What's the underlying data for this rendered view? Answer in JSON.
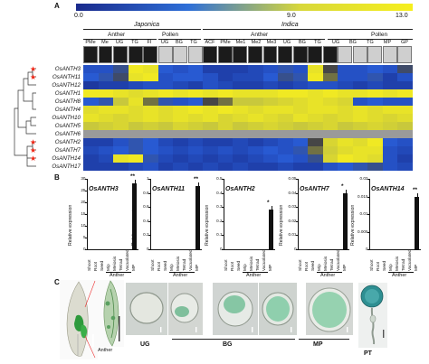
{
  "panel_a": {
    "letter": "A",
    "scale": {
      "min": "0.0",
      "mid": "9.0",
      "max": "13.0",
      "colors": [
        "#1a2a8c",
        "#2e6fd8",
        "#d8d83a",
        "#f6ef1e"
      ]
    },
    "japonica": {
      "label": "Japonica",
      "anther_label": "Anther",
      "pollen_label": "Pollen",
      "anther_cols": [
        "PMe",
        "Me",
        "UG",
        "TG",
        "FI"
      ],
      "pollen_cols": [
        "UG",
        "BG",
        "TG"
      ]
    },
    "indica": {
      "label": "Indica",
      "anther_label": "Anther",
      "pollen_label": "Pollen",
      "anther_cols": [
        "ACF",
        "PMe",
        "Me1",
        "Me2",
        "Me3",
        "UG",
        "BG",
        "TG"
      ],
      "pollen_cols": [
        "UG",
        "BG",
        "TG",
        "MP",
        "GP"
      ]
    },
    "genes": [
      {
        "name": "OsANTH3",
        "star": true
      },
      {
        "name": "OsANTH11",
        "star": true
      },
      {
        "name": "OsANTH12",
        "star": false
      },
      {
        "name": "OsANTH1",
        "star": false
      },
      {
        "name": "OsANTH8",
        "star": false
      },
      {
        "name": "OsANTH4",
        "star": false
      },
      {
        "name": "OsANTH10",
        "star": false
      },
      {
        "name": "OsANTH5",
        "star": false
      },
      {
        "name": "OsANTH6",
        "star": false
      },
      {
        "name": "OsANTH2",
        "star": true
      },
      {
        "name": "OsANTH7",
        "star": true
      },
      {
        "name": "OsANTH14",
        "star": true
      },
      {
        "name": "OsANTH17",
        "star": false
      }
    ],
    "heatmap_levels": [
      [
        0.3,
        0.3,
        0.45,
        0.95,
        0.9,
        0.35,
        0.3,
        0.35,
        0.2,
        0.2,
        0.2,
        0.25,
        0.3,
        0.4,
        0.3,
        0.9,
        0.55,
        0.3,
        0.3,
        0.35,
        0.3,
        0.5
      ],
      [
        0.35,
        0.4,
        0.5,
        0.9,
        0.95,
        0.3,
        0.35,
        0.35,
        0.3,
        0.2,
        0.25,
        0.25,
        0.35,
        0.45,
        0.4,
        0.95,
        0.6,
        0.3,
        0.3,
        0.4,
        0.2,
        0.3
      ],
      [
        0.15,
        0.2,
        0.2,
        0.25,
        0.3,
        0.3,
        0.25,
        0.2,
        0.3,
        0.25,
        0.2,
        0.2,
        0.25,
        0.2,
        0.25,
        0.3,
        0.3,
        0.25,
        0.2,
        0.25,
        0.2,
        0.2
      ],
      [
        0.95,
        0.95,
        0.9,
        0.85,
        0.9,
        0.95,
        0.9,
        0.95,
        0.9,
        0.95,
        0.9,
        0.9,
        0.9,
        0.95,
        0.95,
        0.9,
        0.95,
        0.9,
        0.9,
        0.95,
        0.9,
        0.95
      ],
      [
        0.35,
        0.4,
        0.7,
        0.9,
        0.6,
        0.4,
        0.3,
        0.35,
        0.55,
        0.6,
        0.7,
        0.7,
        0.75,
        0.8,
        0.85,
        0.9,
        0.85,
        0.8,
        0.3,
        0.35,
        0.3,
        0.3
      ],
      [
        0.85,
        0.9,
        0.9,
        0.85,
        0.9,
        0.85,
        0.9,
        0.95,
        0.9,
        0.95,
        0.9,
        0.85,
        0.9,
        0.9,
        0.85,
        0.9,
        0.9,
        0.85,
        0.9,
        0.85,
        0.9,
        0.9
      ],
      [
        0.9,
        0.85,
        0.8,
        0.85,
        0.9,
        0.85,
        0.9,
        0.85,
        0.9,
        0.8,
        0.85,
        0.9,
        0.85,
        0.8,
        0.9,
        0.85,
        0.8,
        0.85,
        0.9,
        0.85,
        0.8,
        0.85
      ],
      [
        0.7,
        0.75,
        0.8,
        0.7,
        0.75,
        0.7,
        0.8,
        0.75,
        0.7,
        0.8,
        0.7,
        0.75,
        0.8,
        0.75,
        0.7,
        0.75,
        0.8,
        0.7,
        0.75,
        0.8,
        0.75,
        0.7
      ],
      [
        0.55,
        0.55,
        0.55,
        0.55,
        0.55,
        0.55,
        0.55,
        0.55,
        0.55,
        0.55,
        0.55,
        0.55,
        0.55,
        0.55,
        0.55,
        0.55,
        0.55,
        0.55,
        0.55,
        0.55,
        0.55,
        0.55
      ],
      [
        0.2,
        0.2,
        0.3,
        0.4,
        0.35,
        0.25,
        0.2,
        0.25,
        0.2,
        0.2,
        0.25,
        0.2,
        0.25,
        0.3,
        0.35,
        0.55,
        0.8,
        0.9,
        0.85,
        0.95,
        0.35,
        0.3
      ],
      [
        0.25,
        0.3,
        0.35,
        0.4,
        0.35,
        0.3,
        0.25,
        0.3,
        0.25,
        0.3,
        0.25,
        0.3,
        0.35,
        0.3,
        0.4,
        0.6,
        0.75,
        0.85,
        0.9,
        0.9,
        0.3,
        0.25
      ],
      [
        0.2,
        0.25,
        0.9,
        0.95,
        0.4,
        0.25,
        0.2,
        0.25,
        0.2,
        0.25,
        0.2,
        0.25,
        0.3,
        0.35,
        0.3,
        0.45,
        0.8,
        0.95,
        0.9,
        0.85,
        0.3,
        0.2
      ],
      [
        0.2,
        0.2,
        0.2,
        0.25,
        0.3,
        0.2,
        0.25,
        0.2,
        0.25,
        0.2,
        0.25,
        0.2,
        0.2,
        0.25,
        0.2,
        0.2,
        0.3,
        0.35,
        0.4,
        0.45,
        0.3,
        0.25
      ]
    ]
  },
  "panel_b": {
    "letter": "B",
    "y_label": "Relative expression",
    "group_label": "Anther",
    "categories": [
      "Shoot",
      "Root",
      "Seed",
      "Mip",
      "Meiosis",
      "Tetrad",
      "Vacuolated",
      "MP"
    ],
    "charts": [
      {
        "title": "OsANTH3",
        "sig": "**",
        "ylim": [
          0,
          30
        ],
        "ticks": [
          "0",
          "5",
          "10",
          "15",
          "20",
          "25",
          "30"
        ],
        "values": [
          0,
          0,
          0,
          0,
          0,
          0,
          0,
          28
        ]
      },
      {
        "title": "OsANTH11",
        "sig": "**",
        "ylim": [
          0,
          1
        ],
        "ticks": [
          "0",
          "0.2",
          "0.4",
          "0.6",
          "0.8",
          "1"
        ],
        "values": [
          0,
          0,
          0,
          0,
          0,
          0,
          0,
          0.9
        ]
      },
      {
        "title": "OsANTH2",
        "sig": "*",
        "ylim": [
          0,
          0.5
        ],
        "ticks": [
          "0",
          "0.1",
          "0.2",
          "0.3",
          "0.4",
          "0.5"
        ],
        "values": [
          0,
          0,
          0,
          0,
          0,
          0,
          0,
          0.28
        ]
      },
      {
        "title": "OsANTH7",
        "sig": "*",
        "ylim": [
          0,
          0.05
        ],
        "ticks": [
          "0",
          "0.01",
          "0.02",
          "0.03",
          "0.04",
          "0.05"
        ],
        "values": [
          0,
          0,
          0,
          0,
          0,
          0,
          0,
          0.04
        ]
      },
      {
        "title": "OsANTH14",
        "sig": "**",
        "ylim": [
          0,
          0.02
        ],
        "ticks": [
          "0",
          "0.005",
          "0.01",
          "0.015",
          "0.02"
        ],
        "values": [
          0,
          0,
          0,
          0,
          0,
          0,
          0,
          0.015
        ]
      }
    ]
  },
  "panel_c": {
    "letter": "C",
    "label_anther": "Anther",
    "label_ug": "UG",
    "label_bg": "BG",
    "label_mp": "MP",
    "label_pt": "PT"
  }
}
